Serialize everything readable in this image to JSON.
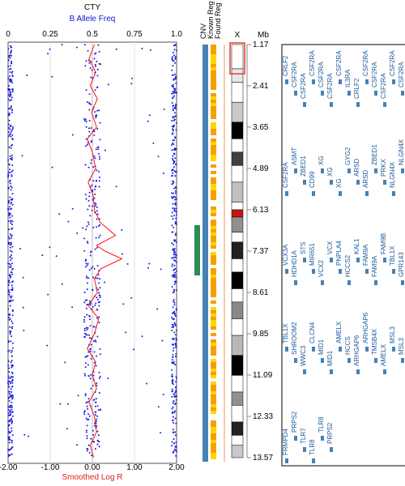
{
  "chart_data": {
    "type": "scatter",
    "title": "CTY",
    "top_axis": {
      "label": "B Allele Freq",
      "ticks": [
        "0",
        "0.25",
        "0.5",
        "0.75",
        "1.0"
      ],
      "range": [
        0,
        1
      ]
    },
    "bottom_axis": {
      "label": "Smoothed Log R",
      "ticks": [
        "-2.00",
        "-1.00",
        "0.00",
        "1.00",
        "2.00"
      ],
      "range": [
        -2,
        2
      ]
    },
    "mb_axis": {
      "label": "Mb",
      "ticks": [
        "1.17",
        "2.41",
        "3.65",
        "4.89",
        "6.13",
        "7.37",
        "8.61",
        "9.85",
        "11.09",
        "12.33",
        "13.57"
      ]
    },
    "track_headers": {
      "cnv": "CNV",
      "known_reg": "Known Reg",
      "found_reg": "Found Reg",
      "chromosome": "X"
    },
    "smoothed_log_r": {
      "mb": [
        1.17,
        1.6,
        2.0,
        2.41,
        2.8,
        3.2,
        3.65,
        4.0,
        4.4,
        4.89,
        5.3,
        5.7,
        6.13,
        6.5,
        6.9,
        7.2,
        7.37,
        7.6,
        7.9,
        8.2,
        8.61,
        9.0,
        9.4,
        9.85,
        10.3,
        10.7,
        11.09,
        11.5,
        11.9,
        12.33,
        12.8,
        13.2,
        13.57
      ],
      "values": [
        0.05,
        -0.08,
        0.08,
        -0.05,
        0.12,
        -0.02,
        0.1,
        -0.12,
        0.0,
        0.08,
        -0.1,
        0.02,
        0.05,
        0.18,
        0.55,
        0.1,
        0.3,
        0.7,
        0.2,
        0.05,
        0.12,
        -0.1,
        0.15,
        0.05,
        -0.12,
        0.08,
        0.0,
        0.1,
        -0.08,
        0.05,
        0.1,
        -0.05,
        0.03
      ]
    },
    "genes": [
      "CRLF2",
      "CSF2RA",
      "CSF2RA",
      "CSF2RA",
      "CSF2RA",
      "CSF2RA",
      "CSF2RA",
      "IL3RA",
      "CRLF2",
      "CSF2RA",
      "CSF2RA",
      "CSF2RA",
      "CSF2RA",
      "CSF2RA",
      "CSF2RA",
      "ASMT",
      "ZBED1",
      "CD99",
      "XG",
      "XG",
      "XG",
      "GYG2",
      "ARSD",
      "ARSD",
      "ZBED1",
      "PRKX",
      "NLGN4X",
      "NLGN4X",
      "VCX3A",
      "HDHD1A",
      "STS",
      "MIR651",
      "VCX2",
      "VCX",
      "PNPLA4",
      "HCCS2",
      "KAL1",
      "FAM9A",
      "FAM9A",
      "FAM9B",
      "TBL1X",
      "GPR143",
      "TBL1X",
      "SHROOM2",
      "WWC3",
      "CLCN4",
      "MID1",
      "MID1",
      "AMELX",
      "HCCS",
      "ARHGAP6",
      "ARHGAP6",
      "TMSB4X",
      "AMELX",
      "MSL3",
      "MSL3",
      "FRMPD4",
      "PRPS2",
      "TLR7",
      "TLR8",
      "TLR8",
      "PRPS2"
    ]
  }
}
